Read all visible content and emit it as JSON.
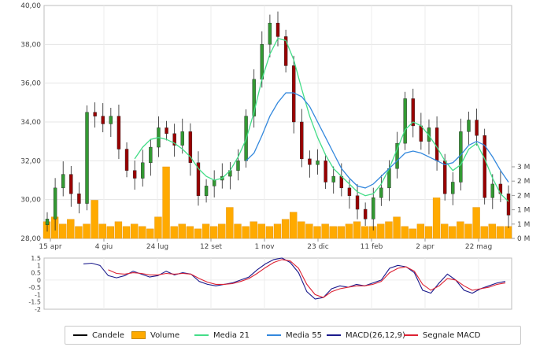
{
  "chart_data": [
    {
      "type": "candlestick",
      "ylim": [
        28,
        40
      ],
      "y_ticks": [
        "28,00",
        "30,00",
        "32,00",
        "34,00",
        "36,00",
        "38,00",
        "40,00"
      ],
      "x_ticks": [
        "15 apr",
        "4 giu",
        "24 lug",
        "12 set",
        "1 nov",
        "23 dic",
        "11 feb",
        "2 apr",
        "22 mag"
      ],
      "volume_ticks": [
        "0 M",
        "1 M",
        "1 M",
        "2 M",
        "2 M",
        "3 M"
      ],
      "volume_ylim": [
        0,
        3
      ],
      "volume_tick_values": [
        0,
        0.6,
        1.2,
        1.8,
        2.4,
        3.0
      ],
      "grid": true,
      "price_close": [
        29.0,
        30.6,
        31.3,
        30.3,
        29.8,
        34.5,
        34.3,
        33.9,
        34.3,
        32.6,
        31.5,
        31.1,
        31.9,
        32.7,
        33.7,
        33.4,
        32.8,
        33.5,
        31.9,
        30.2,
        30.7,
        31.0,
        31.2,
        31.5,
        32.0,
        34.3,
        36.2,
        38.0,
        39.1,
        38.4,
        36.9,
        34.0,
        32.1,
        31.8,
        32.0,
        30.9,
        31.2,
        30.6,
        30.2,
        29.5,
        29.0,
        30.1,
        30.6,
        31.6,
        32.9,
        35.2,
        33.8,
        33.0,
        33.7,
        32.0,
        30.3,
        30.9,
        33.5,
        34.1,
        33.3,
        30.1,
        30.8,
        30.3,
        29.2
      ],
      "ma21": [
        null,
        null,
        null,
        null,
        null,
        null,
        null,
        null,
        null,
        null,
        null,
        32.1,
        32.7,
        33.1,
        33.2,
        33.1,
        32.9,
        32.6,
        32.2,
        31.6,
        31.2,
        31.0,
        31.1,
        31.5,
        32.2,
        33.1,
        34.5,
        36.2,
        37.5,
        38.3,
        38.2,
        37.2,
        35.7,
        34.3,
        33.2,
        32.3,
        31.6,
        31.2,
        30.8,
        30.4,
        30.2,
        30.3,
        30.8,
        31.6,
        32.6,
        33.6,
        34.0,
        33.8,
        33.3,
        32.7,
        32.0,
        31.5,
        31.8,
        32.6,
        32.9,
        32.1,
        31.1,
        30.3,
        29.9
      ],
      "ma55": [
        null,
        null,
        null,
        null,
        null,
        null,
        null,
        null,
        null,
        null,
        null,
        null,
        null,
        null,
        null,
        null,
        null,
        null,
        null,
        null,
        null,
        null,
        null,
        null,
        null,
        32.0,
        32.4,
        33.3,
        34.3,
        35.0,
        35.5,
        35.5,
        35.3,
        34.8,
        34.0,
        33.2,
        32.4,
        31.6,
        31.1,
        30.7,
        30.6,
        30.8,
        31.2,
        31.6,
        32.0,
        32.4,
        32.5,
        32.4,
        32.2,
        32.0,
        31.8,
        31.9,
        32.3,
        32.8,
        33.0,
        32.8,
        32.2,
        31.5,
        30.9
      ],
      "volume": [
        0.7,
        0.9,
        0.6,
        0.8,
        0.5,
        0.6,
        1.6,
        0.6,
        0.5,
        0.7,
        0.5,
        0.6,
        0.5,
        0.4,
        0.9,
        3.0,
        0.5,
        0.6,
        0.5,
        0.4,
        0.6,
        0.5,
        0.6,
        1.3,
        0.6,
        0.5,
        0.7,
        0.6,
        0.5,
        0.6,
        0.8,
        1.1,
        0.7,
        0.6,
        0.5,
        0.6,
        0.5,
        0.5,
        0.6,
        0.7,
        0.5,
        0.5,
        0.6,
        0.7,
        0.9,
        0.5,
        0.4,
        0.6,
        0.5,
        1.7,
        0.6,
        0.5,
        0.7,
        0.6,
        1.3,
        0.5,
        0.6,
        0.5,
        0.5
      ],
      "volume_color": "#ffaa00",
      "candle_up_color": "#339933",
      "candle_down_color": "#990000",
      "ma21_color": "#44dd88",
      "ma55_color": "#3388dd"
    },
    {
      "type": "line",
      "ylim": [
        -2,
        1.5
      ],
      "y_ticks": [
        "1.5",
        "1",
        "0.5",
        "0",
        "-0.5",
        "-1",
        "-1.5",
        "-2"
      ],
      "y_tick_values": [
        1.5,
        1,
        0.5,
        0,
        -0.5,
        -1,
        -1.5,
        -2
      ],
      "series": [
        {
          "name": "MACD(26,12,9)",
          "color": "#1a1a8c",
          "values": [
            1.1,
            1.15,
            1.0,
            0.3,
            0.15,
            0.3,
            0.6,
            0.4,
            0.2,
            0.3,
            0.6,
            0.35,
            0.5,
            0.4,
            -0.1,
            -0.3,
            -0.4,
            -0.3,
            -0.2,
            0.0,
            0.2,
            0.7,
            1.1,
            1.4,
            1.5,
            1.2,
            0.5,
            -0.8,
            -1.3,
            -1.2,
            -0.6,
            -0.4,
            -0.5,
            -0.3,
            -0.4,
            -0.2,
            0.0,
            0.8,
            1.0,
            0.9,
            0.5,
            -0.7,
            -0.9,
            -0.2,
            0.4,
            0.0,
            -0.7,
            -0.9,
            -0.6,
            -0.4,
            -0.2,
            -0.1
          ]
        },
        {
          "name": "Segnale MACD",
          "color": "#dd2233",
          "values": [
            null,
            null,
            null,
            0.7,
            0.45,
            0.4,
            0.5,
            0.45,
            0.35,
            0.35,
            0.45,
            0.4,
            0.45,
            0.4,
            0.1,
            -0.15,
            -0.3,
            -0.3,
            -0.25,
            -0.1,
            0.1,
            0.45,
            0.85,
            1.2,
            1.4,
            1.3,
            0.8,
            -0.3,
            -1.0,
            -1.2,
            -0.8,
            -0.6,
            -0.5,
            -0.4,
            -0.4,
            -0.3,
            -0.1,
            0.5,
            0.8,
            0.9,
            0.6,
            -0.3,
            -0.7,
            -0.4,
            0.1,
            0.0,
            -0.4,
            -0.7,
            -0.6,
            -0.5,
            -0.3,
            -0.2
          ]
        }
      ]
    }
  ],
  "legend": [
    {
      "label": "Candele",
      "color": "#000000",
      "kind": "line"
    },
    {
      "label": "Volume",
      "color": "#ffaa00",
      "kind": "box"
    },
    {
      "label": "Media 21",
      "color": "#44dd88",
      "kind": "line"
    },
    {
      "label": "Media 55",
      "color": "#3388dd",
      "kind": "line"
    },
    {
      "label": "MACD(26,12,9)",
      "color": "#1a1a8c",
      "kind": "line"
    },
    {
      "label": "Segnale MACD",
      "color": "#dd2233",
      "kind": "line"
    }
  ]
}
